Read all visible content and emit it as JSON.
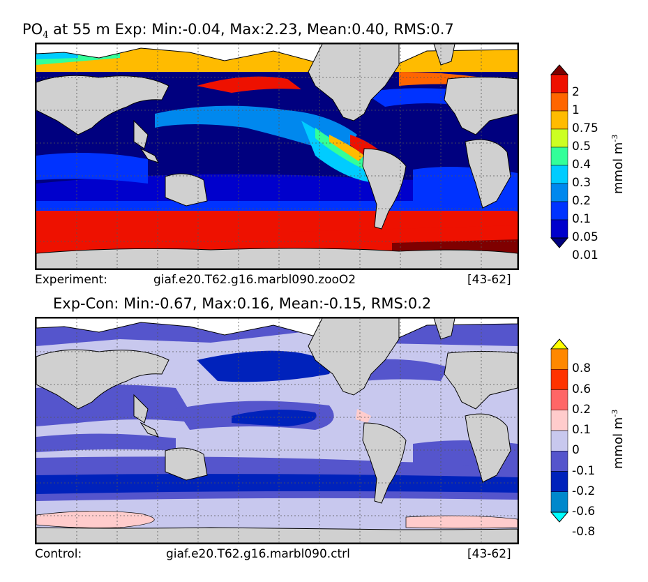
{
  "top": {
    "title_var": "PO",
    "title_sub": "4",
    "title_rest": " at 55 m Exp: Min:-0.04, Max:2.23, Mean:0.40, RMS:0.7",
    "footer_label": "Experiment:",
    "footer_case": "giaf.e20.T62.g16.marbl090.zooO2",
    "footer_years": "[43-62]",
    "colorbar": {
      "labels": [
        "2",
        "1",
        "0.75",
        "0.5",
        "0.4",
        "0.3",
        "0.2",
        "0.1",
        "0.05",
        "0.01"
      ],
      "colors": [
        "#7f0000",
        "#ee1100",
        "#ff6600",
        "#ffbb00",
        "#ccff22",
        "#33ff99",
        "#00ccff",
        "#0088ee",
        "#0033ff",
        "#0000cc",
        "#00007f"
      ],
      "units": "mmol m",
      "units_exp": "-3"
    }
  },
  "bottom": {
    "title": "Exp-Con: Min:-0.67, Max:0.16, Mean:-0.15, RMS:0.2",
    "footer_label": "Control:",
    "footer_case": "giaf.e20.T62.g16.marbl090.ctrl",
    "footer_years": "[43-62]",
    "colorbar": {
      "labels": [
        "0.8",
        "0.6",
        "0.2",
        "0.1",
        "0",
        "-0.1",
        "-0.2",
        "-0.6",
        "-0.8"
      ],
      "colors": [
        "#ffff00",
        "#ff8800",
        "#ff3300",
        "#ff6666",
        "#ffcccc",
        "#c8c8ee",
        "#5555cc",
        "#0022bb",
        "#0088cc",
        "#00ffff"
      ],
      "units": "mmol m",
      "units_exp": "-3"
    }
  },
  "colors": {
    "land": "#d0d0d0",
    "frame": "#000000",
    "grid": "#555555"
  }
}
